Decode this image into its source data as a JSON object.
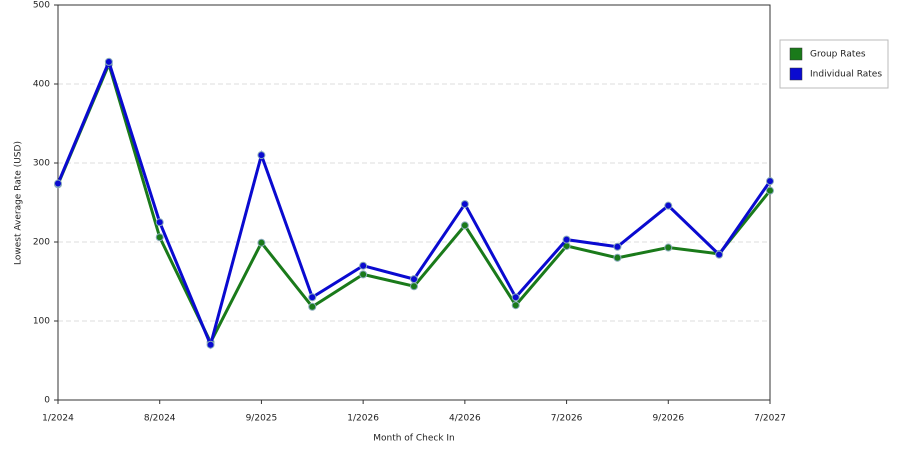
{
  "chart_data": {
    "type": "line",
    "x_label": "Month of Check In",
    "y_label": "Lowest Average Rate (USD)",
    "categories": [
      "1/2024",
      null,
      "8/2024",
      null,
      "9/2025",
      null,
      "1/2026",
      null,
      "4/2026",
      null,
      "7/2026",
      null,
      "9/2026",
      null,
      "7/2027"
    ],
    "series": [
      {
        "name": "Group Rates",
        "color": "#1a7a1a",
        "values": [
          273,
          425,
          206,
          73,
          199,
          118,
          159,
          144,
          221,
          120,
          195,
          180,
          193,
          185,
          265
        ]
      },
      {
        "name": "Individual Rates",
        "color": "#0a0ad0",
        "values": [
          274,
          428,
          225,
          70,
          310,
          130,
          170,
          153,
          248,
          130,
          203,
          194,
          246,
          184,
          277
        ]
      }
    ],
    "ylim": [
      0,
      500
    ],
    "yticks": [
      0,
      100,
      200,
      300,
      400,
      500
    ],
    "grid": true
  }
}
